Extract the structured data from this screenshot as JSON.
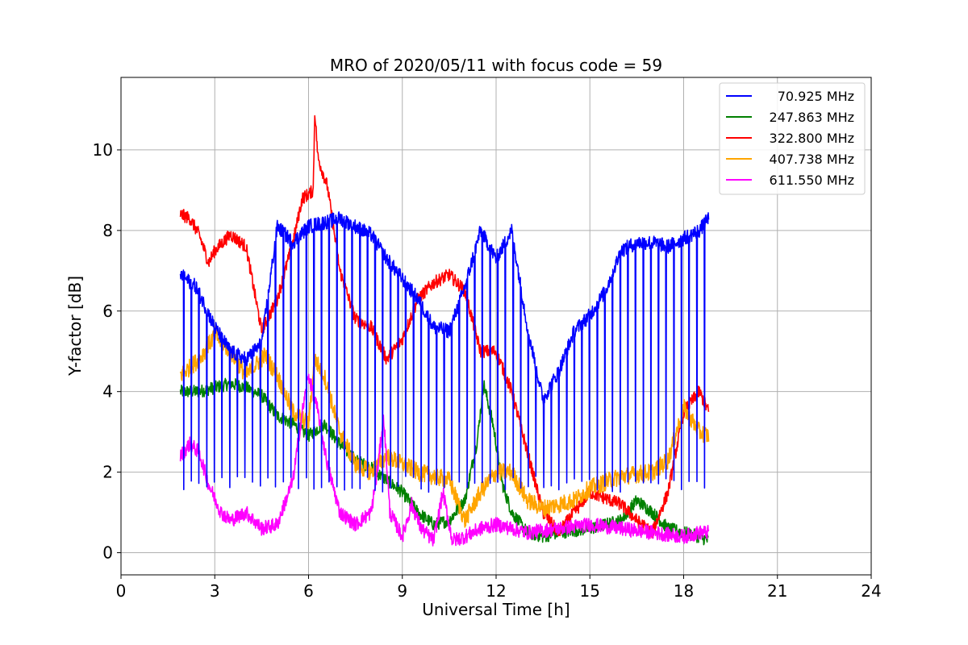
{
  "chart_data": {
    "type": "line",
    "title": "MRO of 2020/05/11 with focus code = 59",
    "xlabel": "Universal Time [h]",
    "ylabel": "Y-factor [dB]",
    "xlim": [
      0,
      24
    ],
    "ylim": [
      -0.55,
      11.8
    ],
    "xticks": [
      0,
      3,
      6,
      9,
      12,
      15,
      18,
      21,
      24
    ],
    "xtick_labels": [
      "0",
      "3",
      "6",
      "9",
      "12",
      "15",
      "18",
      "21",
      "24"
    ],
    "yticks": [
      0,
      2,
      4,
      6,
      8,
      10
    ],
    "ytick_labels": [
      "0",
      "2",
      "4",
      "6",
      "8",
      "10"
    ],
    "grid": true,
    "legend_position": "top-right",
    "series": [
      {
        "name": "70.925 MHz",
        "color": "#0000ff",
        "x": [
          1.9,
          2.4,
          3.0,
          3.5,
          4.0,
          4.5,
          5.0,
          5.5,
          6.0,
          6.5,
          7.0,
          7.5,
          8.0,
          8.5,
          9.0,
          9.5,
          10.0,
          10.5,
          11.0,
          11.5,
          12.0,
          12.5,
          13.0,
          13.5,
          14.0,
          14.5,
          15.0,
          15.5,
          16.0,
          16.5,
          17.0,
          17.5,
          18.0,
          18.5,
          18.8
        ],
        "values": [
          6.9,
          6.6,
          5.6,
          5.0,
          4.8,
          5.2,
          8.1,
          7.7,
          8.1,
          8.2,
          8.3,
          8.1,
          7.9,
          7.3,
          6.8,
          6.3,
          5.6,
          5.5,
          6.6,
          8.0,
          7.3,
          8.0,
          5.6,
          3.8,
          4.5,
          5.5,
          5.9,
          6.5,
          7.5,
          7.7,
          7.7,
          7.6,
          7.8,
          8.0,
          8.3
        ],
        "dip_floor": 1.5
      },
      {
        "name": "247.863 MHz",
        "color": "#008000",
        "x": [
          1.9,
          2.5,
          3.0,
          3.5,
          4.0,
          4.5,
          5.0,
          5.5,
          6.0,
          6.5,
          7.0,
          7.5,
          8.0,
          8.5,
          9.0,
          9.5,
          10.0,
          10.5,
          11.0,
          11.4,
          11.6,
          11.9,
          12.2,
          12.5,
          13.0,
          13.5,
          14.0,
          15.0,
          16.0,
          16.5,
          17.0,
          17.5,
          18.0,
          18.5,
          18.8
        ],
        "values": [
          4.0,
          4.0,
          4.1,
          4.2,
          4.1,
          3.9,
          3.4,
          3.2,
          2.9,
          3.2,
          2.7,
          2.3,
          2.1,
          1.8,
          1.5,
          1.0,
          0.7,
          0.8,
          1.3,
          2.8,
          4.2,
          3.2,
          1.7,
          1.0,
          0.5,
          0.4,
          0.5,
          0.6,
          0.8,
          1.3,
          1.0,
          0.6,
          0.5,
          0.4,
          0.3
        ]
      },
      {
        "name": "322.800 MHz",
        "color": "#ff0000",
        "x": [
          1.9,
          2.2,
          2.5,
          2.8,
          3.0,
          3.5,
          4.0,
          4.5,
          5.0,
          5.5,
          5.8,
          6.0,
          6.15,
          6.2,
          6.3,
          6.6,
          7.0,
          7.5,
          8.0,
          8.5,
          9.0,
          9.5,
          10.0,
          10.5,
          11.0,
          11.5,
          12.0,
          12.5,
          13.0,
          13.5,
          14.0,
          15.0,
          16.0,
          16.5,
          17.0,
          17.5,
          18.0,
          18.5,
          18.8
        ],
        "values": [
          8.4,
          8.3,
          7.9,
          7.2,
          7.5,
          7.9,
          7.6,
          5.5,
          6.3,
          7.7,
          8.8,
          8.9,
          9.0,
          11.0,
          9.8,
          9.1,
          7.0,
          5.8,
          5.6,
          4.8,
          5.3,
          6.3,
          6.7,
          6.9,
          6.5,
          5.0,
          5.0,
          4.0,
          2.5,
          1.0,
          0.5,
          1.5,
          1.2,
          0.8,
          0.5,
          1.5,
          3.5,
          4.0,
          3.5
        ]
      },
      {
        "name": "407.738 MHz",
        "color": "#ffa500",
        "x": [
          1.9,
          2.5,
          3.0,
          3.5,
          4.0,
          4.6,
          5.0,
          5.5,
          6.0,
          6.2,
          6.5,
          7.0,
          7.5,
          8.0,
          8.5,
          9.0,
          9.5,
          10.0,
          10.5,
          11.0,
          11.5,
          12.0,
          12.5,
          13.0,
          13.5,
          14.0,
          14.5,
          15.0,
          16.0,
          17.0,
          17.5,
          18.0,
          18.5,
          18.8
        ],
        "values": [
          4.4,
          4.8,
          5.4,
          5.0,
          4.4,
          4.9,
          4.4,
          3.5,
          3.2,
          4.8,
          4.4,
          3.0,
          2.2,
          2.0,
          2.4,
          2.2,
          2.0,
          1.9,
          1.8,
          0.8,
          1.5,
          2.0,
          2.0,
          1.3,
          1.1,
          1.2,
          1.3,
          1.6,
          1.9,
          2.0,
          2.3,
          3.6,
          3.0,
          2.9
        ]
      },
      {
        "name": "611.550 MHz",
        "color": "#ff00ff",
        "x": [
          1.9,
          2.2,
          2.5,
          2.8,
          3.2,
          3.5,
          4.0,
          4.5,
          5.0,
          5.5,
          5.8,
          6.0,
          6.3,
          6.6,
          7.0,
          7.5,
          8.0,
          8.2,
          8.4,
          8.6,
          9.0,
          9.3,
          9.6,
          10.0,
          10.3,
          10.6,
          11.0,
          11.5,
          12.0,
          12.5,
          13.0,
          14.0,
          15.0,
          16.0,
          17.0,
          18.0,
          18.5,
          18.8
        ],
        "values": [
          2.4,
          2.7,
          2.5,
          1.7,
          1.0,
          0.8,
          1.0,
          0.6,
          0.7,
          1.8,
          3.5,
          4.4,
          3.5,
          2.2,
          1.0,
          0.7,
          1.0,
          2.0,
          3.4,
          1.0,
          0.4,
          1.2,
          0.6,
          0.3,
          1.5,
          0.3,
          0.4,
          0.6,
          0.7,
          0.6,
          0.5,
          0.6,
          0.7,
          0.6,
          0.5,
          0.4,
          0.5,
          0.5
        ]
      }
    ]
  }
}
